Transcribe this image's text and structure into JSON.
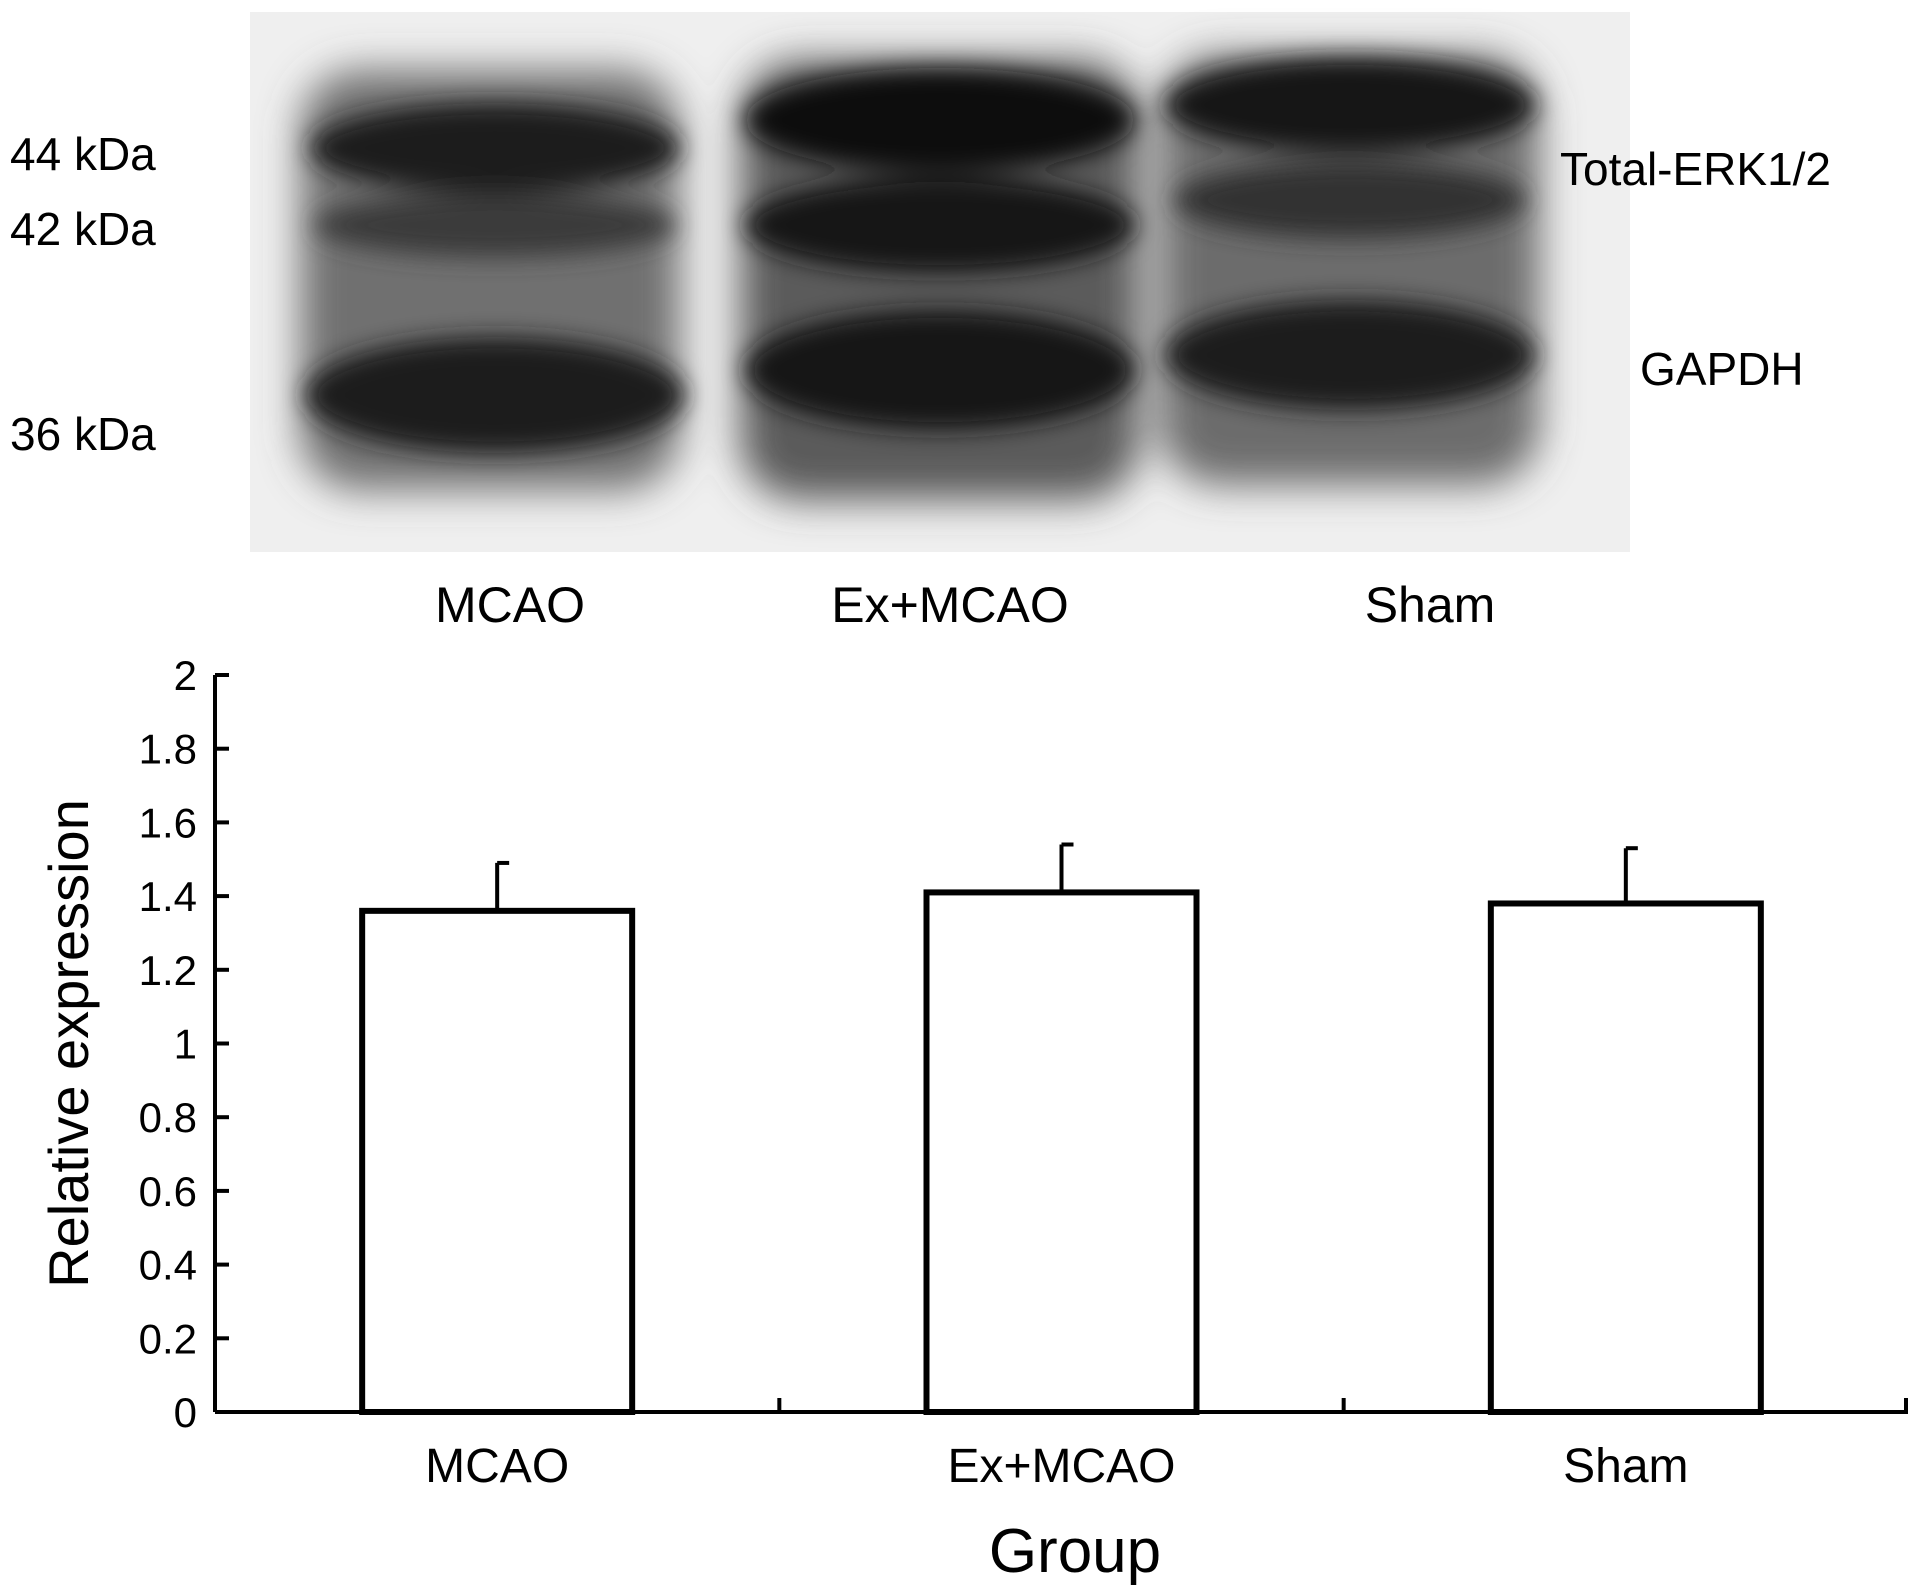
{
  "blot": {
    "marker_labels": [
      "44 kDa",
      "42 kDa",
      "36 kDa"
    ],
    "band_labels": [
      "Total-ERK1/2",
      "GAPDH"
    ],
    "lane_labels": [
      "MCAO",
      "Ex+MCAO",
      "Sham"
    ]
  },
  "chart_data": {
    "type": "bar",
    "categories": [
      "MCAO",
      "Ex+MCAO",
      "Sham"
    ],
    "series": [
      {
        "values": [
          1.36,
          1.41,
          1.38
        ],
        "error": [
          0.13,
          0.13,
          0.15
        ]
      }
    ],
    "xlabel": "Group",
    "ylabel": "Relative expression",
    "ylim": [
      0,
      2
    ],
    "yticks": [
      "0",
      "0.2",
      "0.4",
      "0.6",
      "0.8",
      "1",
      "1.2",
      "1.4",
      "1.6",
      "1.8",
      "2"
    ],
    "grid": false,
    "bar_fill": "#ffffff",
    "bar_stroke": "#000000"
  }
}
